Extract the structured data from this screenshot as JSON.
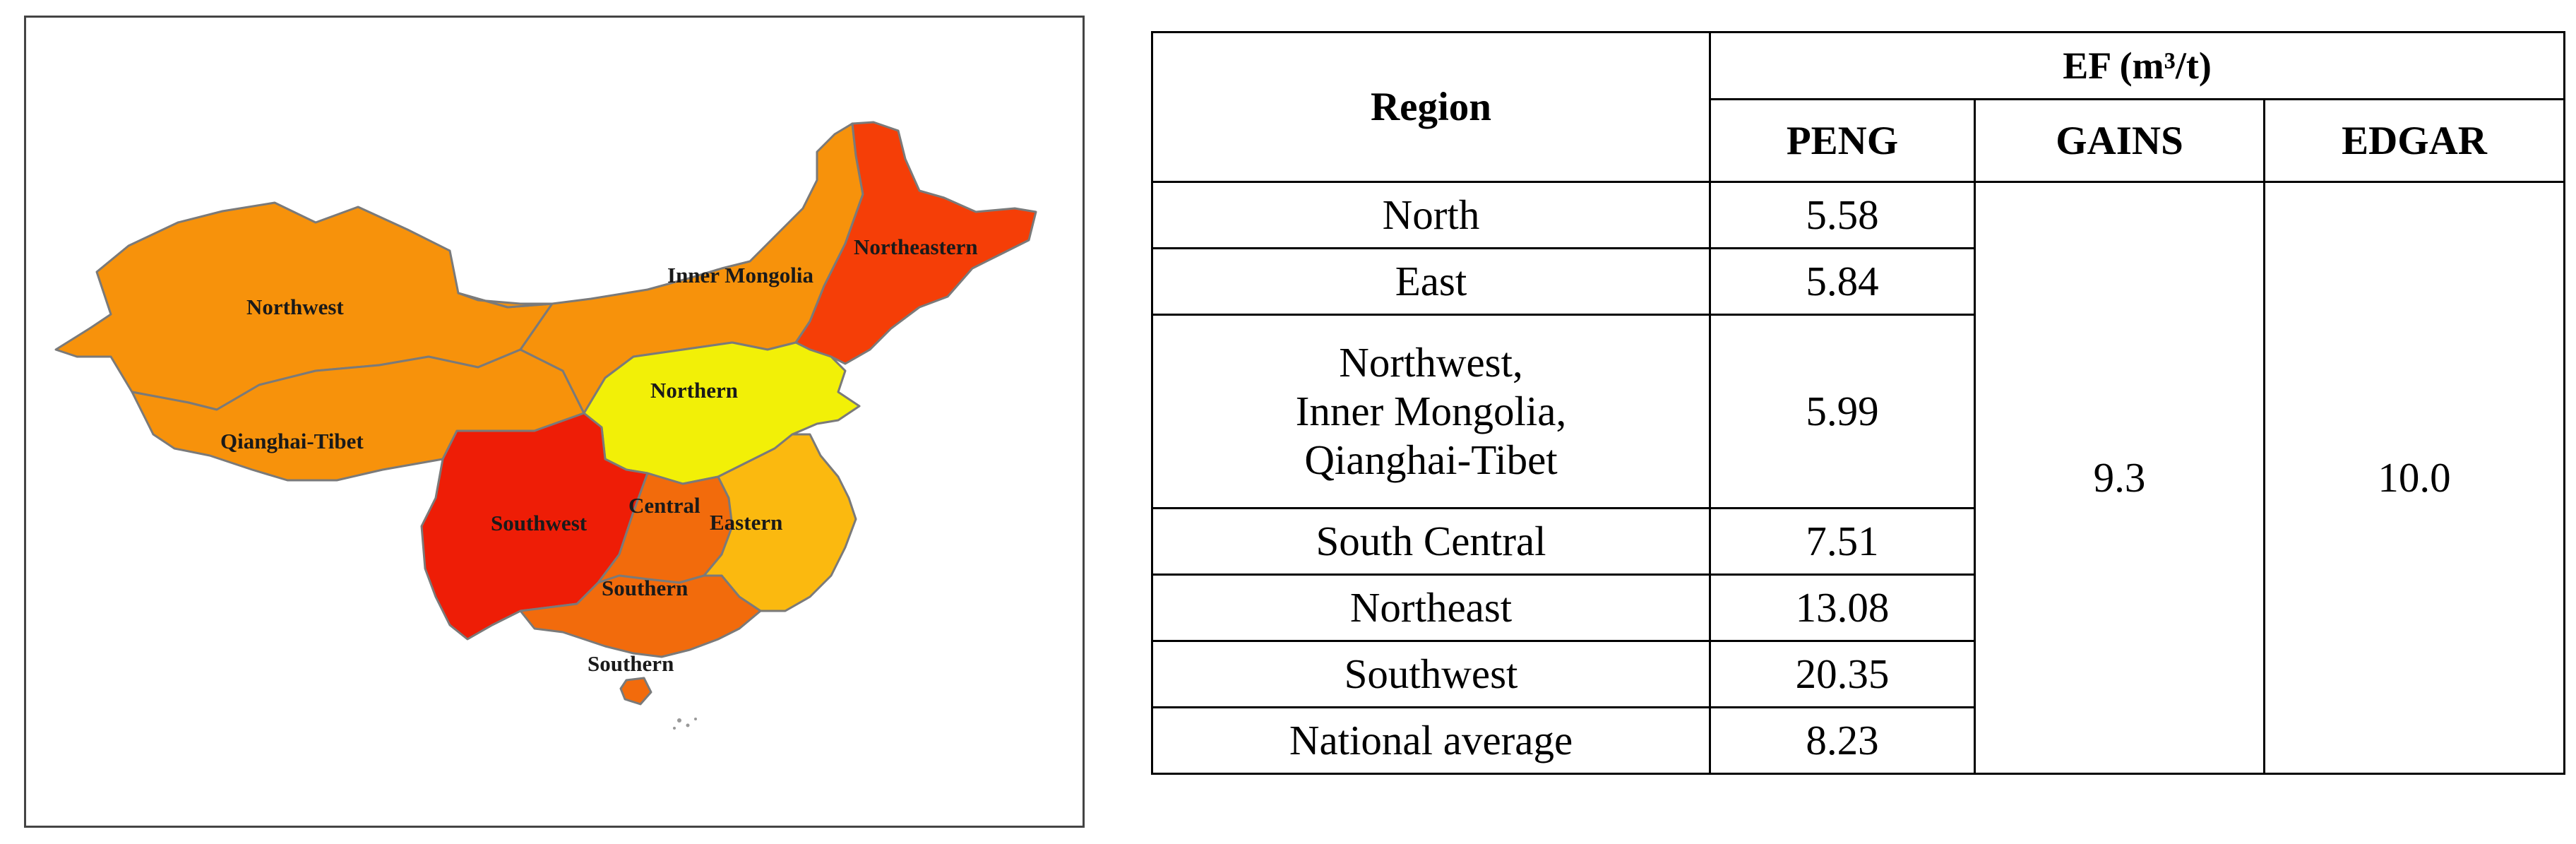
{
  "map": {
    "regions": [
      {
        "key": "northwest",
        "label": "Northwest",
        "color": "#f7920b"
      },
      {
        "key": "qianghai_tibet",
        "label": "Qianghai-Tibet",
        "color": "#f7920b"
      },
      {
        "key": "inner_mongolia",
        "label": "Inner Mongolia",
        "color": "#f7920b"
      },
      {
        "key": "northeastern",
        "label": "Northeastern",
        "color": "#f53e07"
      },
      {
        "key": "northern",
        "label": "Northern",
        "color": "#f2f007"
      },
      {
        "key": "southwest",
        "label": "Southwest",
        "color": "#ee1d06"
      },
      {
        "key": "central",
        "label": "Central",
        "color": "#f26b0c"
      },
      {
        "key": "eastern",
        "label": "Eastern",
        "color": "#fbb90f"
      },
      {
        "key": "southern",
        "label": "Southern",
        "color": "#f26b0c"
      },
      {
        "key": "southern_island",
        "label": "Southern",
        "color": "#f26b0c"
      }
    ]
  },
  "table": {
    "region_header": "Region",
    "ef_header": "EF (m³/t)",
    "col_peng": "PENG",
    "col_gains": "GAINS",
    "col_edgar": "EDGAR",
    "rows": [
      {
        "region": [
          "North"
        ],
        "peng": "5.58"
      },
      {
        "region": [
          "East"
        ],
        "peng": "5.84"
      },
      {
        "region": [
          "Northwest,",
          "Inner Mongolia,",
          "Qianghai-Tibet"
        ],
        "peng": "5.99"
      },
      {
        "region": [
          "South Central"
        ],
        "peng": "7.51"
      },
      {
        "region": [
          "Northeast"
        ],
        "peng": "13.08"
      },
      {
        "region": [
          "Southwest"
        ],
        "peng": "20.35"
      },
      {
        "region": [
          "National average"
        ],
        "peng": "8.23"
      }
    ],
    "gains_value": "9.3",
    "edgar_value": "10.0"
  }
}
